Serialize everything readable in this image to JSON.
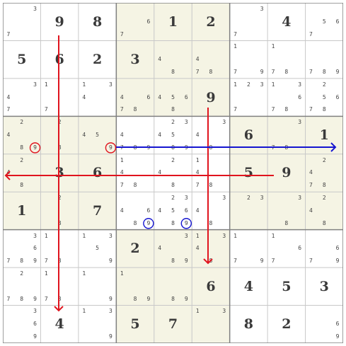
{
  "puzzle": {
    "givens": [
      [
        null,
        9,
        8,
        null,
        1,
        2,
        null,
        4,
        null
      ],
      [
        5,
        6,
        2,
        3,
        null,
        null,
        null,
        null,
        null
      ],
      [
        null,
        null,
        null,
        null,
        null,
        9,
        null,
        null,
        null
      ],
      [
        null,
        null,
        null,
        null,
        null,
        null,
        6,
        null,
        1
      ],
      [
        null,
        3,
        6,
        null,
        null,
        null,
        5,
        9,
        null
      ],
      [
        1,
        null,
        7,
        null,
        null,
        null,
        null,
        null,
        null
      ],
      [
        null,
        null,
        null,
        2,
        null,
        null,
        null,
        null,
        null
      ],
      [
        null,
        null,
        null,
        null,
        null,
        6,
        4,
        5,
        3
      ],
      [
        null,
        4,
        null,
        5,
        7,
        null,
        8,
        2,
        null
      ]
    ],
    "candidates": [
      [
        [
          3,
          7
        ],
        [],
        [],
        [
          6,
          7
        ],
        [],
        [],
        [
          3,
          7
        ],
        [],
        [
          5,
          6,
          7
        ]
      ],
      [
        [],
        [],
        [],
        [],
        [
          4,
          8
        ],
        [
          4,
          7,
          8
        ],
        [
          1,
          7,
          9
        ],
        [
          1,
          7,
          8
        ],
        [
          7,
          8,
          9
        ]
      ],
      [
        [
          3,
          4,
          7
        ],
        [
          1,
          7
        ],
        [
          1,
          3,
          4
        ],
        [
          4,
          6,
          7,
          8
        ],
        [
          4,
          5,
          6,
          8
        ],
        [],
        [
          1,
          2,
          3,
          7
        ],
        [
          1,
          3,
          6,
          7,
          8
        ],
        [
          2,
          5,
          6,
          7,
          8
        ]
      ],
      [
        [
          2,
          4,
          8,
          9
        ],
        [
          2,
          8
        ],
        [
          4,
          5,
          9
        ],
        [
          4,
          7,
          8,
          9
        ],
        [
          2,
          3,
          4,
          5,
          8,
          9
        ],
        [
          3,
          4,
          8
        ],
        [],
        [
          3,
          7,
          8
        ],
        []
      ],
      [
        [
          2,
          4,
          8
        ],
        [],
        [],
        [
          1,
          4,
          7,
          8
        ],
        [
          2,
          4,
          8
        ],
        [
          1,
          4,
          7,
          8
        ],
        [],
        [],
        [
          2,
          4,
          7,
          8
        ]
      ],
      [
        [],
        [
          2,
          8
        ],
        [],
        [
          4,
          6,
          8,
          9
        ],
        [
          2,
          3,
          4,
          5,
          6,
          8,
          9
        ],
        [
          3,
          4,
          8
        ],
        [
          2,
          3
        ],
        [
          3,
          8
        ],
        [
          2,
          4,
          8
        ]
      ],
      [
        [
          3,
          6,
          7,
          8,
          9
        ],
        [
          1,
          7,
          8
        ],
        [
          1,
          3,
          5,
          9
        ],
        [],
        [
          3,
          4,
          8,
          9
        ],
        [
          1,
          3,
          4,
          8
        ],
        [
          1,
          7,
          9
        ],
        [
          1,
          6,
          7
        ],
        [
          6,
          7,
          9
        ]
      ],
      [
        [
          2,
          7,
          8,
          9
        ],
        [
          1,
          7,
          8
        ],
        [
          1,
          9
        ],
        [
          1,
          8,
          9
        ],
        [
          8,
          9
        ],
        [],
        [],
        [],
        []
      ],
      [
        [
          3,
          6,
          9
        ],
        [],
        [
          1,
          3,
          9
        ],
        [],
        [],
        [
          1,
          3
        ],
        [],
        [],
        [
          6,
          9
        ]
      ]
    ]
  },
  "highlights": {
    "red_circles": [
      {
        "row": 4,
        "col": 1,
        "digit": 9
      },
      {
        "row": 4,
        "col": 3,
        "digit": 9
      }
    ],
    "blue_circles": [
      {
        "row": 6,
        "col": 4,
        "digit": 9
      },
      {
        "row": 6,
        "col": 5,
        "digit": 9
      }
    ]
  },
  "colors": {
    "red": "#e0141e",
    "blue": "#1515d0",
    "box_shaded": "#f5f4e4",
    "grid_thin": "#c8c8c8",
    "grid_thick": "#808080"
  }
}
